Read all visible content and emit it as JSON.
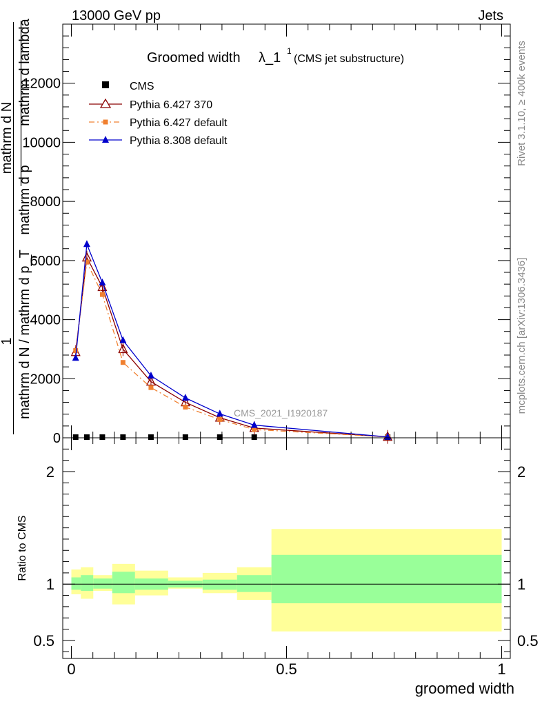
{
  "header": {
    "left": "13000 GeV pp",
    "right": "Jets"
  },
  "title": {
    "main": "Groomed width",
    "symbol": "λ_1",
    "sup": "1",
    "sub": "(CMS jet substructure)"
  },
  "side_labels": {
    "rivet": "Rivet 3.1.10, ≥ 400k events",
    "mcplots": "mcplots.cern.ch [arXiv:1306.3436]"
  },
  "watermark": "CMS_2021_I1920187",
  "y_axis_label": {
    "one": "1",
    "numer": "mathrm d N / mathrm d p_T",
    "numer_sub": "T",
    "denom": "mathrm d N",
    "line2": "mathrm d p_T mathrm d lambda",
    "line2_alt": "mathrm d p",
    "lambda": "mathrm d lambda"
  },
  "ratio_label": "Ratio to CMS",
  "x_label": "groomed width",
  "colors": {
    "cms": "#000000",
    "py6_370": "#8b0000",
    "py6_default": "#f08030",
    "py8": "#0000cc",
    "band_inner": "#99ff99",
    "band_outer": "#ffff99"
  },
  "chart_data": [
    {
      "type": "line",
      "title": "Groomed width λ_1^1 (CMS jet substructure)",
      "xlabel": "groomed width",
      "ylabel": "1 / (mathrm d N / mathrm d p_T) · mathrm d N / (mathrm d p_T mathrm d lambda)",
      "xlim": [
        -0.02,
        1.02
      ],
      "ylim": [
        0,
        14000
      ],
      "yticks": [
        0,
        2000,
        4000,
        6000,
        8000,
        10000,
        12000
      ],
      "ytick_labels": [
        "0",
        "2000",
        "4000",
        "6000",
        "8000",
        "10000",
        "12000"
      ],
      "legend": "top-left",
      "x": [
        0.01,
        0.036,
        0.072,
        0.12,
        0.185,
        0.265,
        0.345,
        0.425,
        0.735
      ],
      "series": [
        {
          "name": "CMS",
          "marker": "square",
          "values": [
            0,
            0,
            0,
            0,
            0,
            0,
            0,
            0,
            0
          ]
        },
        {
          "name": "Pythia 6.427 370",
          "marker": "open-triangle",
          "values": [
            2900,
            6100,
            5100,
            3000,
            1900,
            1200,
            680,
            330,
            30
          ]
        },
        {
          "name": "Pythia 6.427 default",
          "marker": "small-square",
          "values": [
            2950,
            5950,
            4850,
            2550,
            1700,
            1040,
            620,
            280,
            30
          ]
        },
        {
          "name": "Pythia 8.308 default",
          "marker": "filled-triangle",
          "values": [
            2700,
            6550,
            5250,
            3300,
            2100,
            1350,
            810,
            430,
            30
          ]
        }
      ]
    },
    {
      "type": "area",
      "ylabel": "Ratio to CMS",
      "xlabel": "groomed width",
      "xlim": [
        -0.02,
        1.02
      ],
      "ylim": [
        0.34,
        2.3
      ],
      "yticks": [
        0.5,
        1,
        2
      ],
      "ytick_labels": [
        "0.5",
        "1",
        "2"
      ],
      "xticks": [
        0,
        0.5,
        1
      ],
      "xtick_labels": [
        "0",
        "0.5",
        "1"
      ],
      "bins": [
        {
          "x0": 0.0,
          "x1": 0.022,
          "inner": [
            0.95,
            1.06
          ],
          "outer": [
            0.91,
            1.13
          ]
        },
        {
          "x0": 0.022,
          "x1": 0.051,
          "inner": [
            0.94,
            1.08
          ],
          "outer": [
            0.87,
            1.15
          ]
        },
        {
          "x0": 0.051,
          "x1": 0.095,
          "inner": [
            0.96,
            1.05
          ],
          "outer": [
            0.94,
            1.08
          ]
        },
        {
          "x0": 0.095,
          "x1": 0.148,
          "inner": [
            0.92,
            1.11
          ],
          "outer": [
            0.82,
            1.18
          ]
        },
        {
          "x0": 0.148,
          "x1": 0.225,
          "inner": [
            0.95,
            1.05
          ],
          "outer": [
            0.9,
            1.12
          ]
        },
        {
          "x0": 0.225,
          "x1": 0.305,
          "inner": [
            0.97,
            1.03
          ],
          "outer": [
            0.96,
            1.06
          ]
        },
        {
          "x0": 0.305,
          "x1": 0.385,
          "inner": [
            0.95,
            1.04
          ],
          "outer": [
            0.92,
            1.1
          ]
        },
        {
          "x0": 0.385,
          "x1": 0.465,
          "inner": [
            0.93,
            1.08
          ],
          "outer": [
            0.86,
            1.15
          ]
        },
        {
          "x0": 0.465,
          "x1": 1.0,
          "inner": [
            0.83,
            1.26
          ],
          "outer": [
            0.58,
            1.49
          ]
        }
      ],
      "reference": 1
    }
  ]
}
